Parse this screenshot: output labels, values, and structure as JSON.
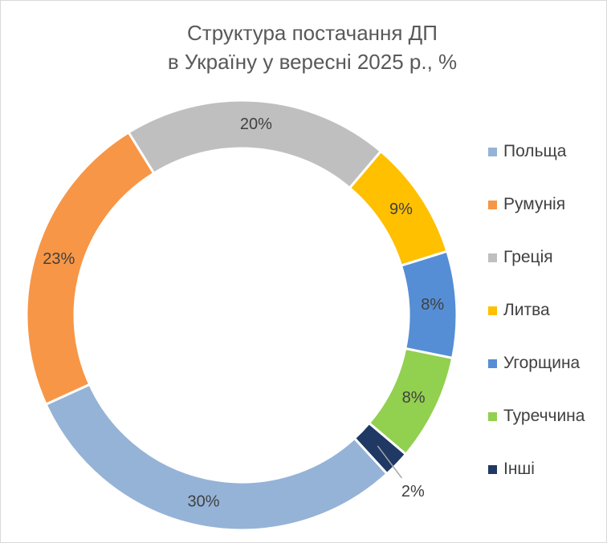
{
  "chart_data": {
    "type": "pie",
    "style": "donut",
    "title": [
      "Структура постачання ДП",
      "в Україну у вересні 2025 р., %"
    ],
    "unit": "%",
    "legend_position": "right",
    "series": [
      {
        "name": "Польща",
        "value": 30,
        "label": "30%",
        "color": "#95b3d7"
      },
      {
        "name": "Румунія",
        "value": 23,
        "label": "23%",
        "color": "#f79646"
      },
      {
        "name": "Греція",
        "value": 20,
        "label": "20%",
        "color": "#bfbfbf"
      },
      {
        "name": "Литва",
        "value": 9,
        "label": "9%",
        "color": "#ffc000"
      },
      {
        "name": "Угорщина",
        "value": 8,
        "label": "8%",
        "color": "#558ed5"
      },
      {
        "name": "Туреччина",
        "value": 8,
        "label": "8%",
        "color": "#92d050"
      },
      {
        "name": "Інші",
        "value": 2,
        "label": "2%",
        "color": "#1f3864"
      }
    ]
  }
}
